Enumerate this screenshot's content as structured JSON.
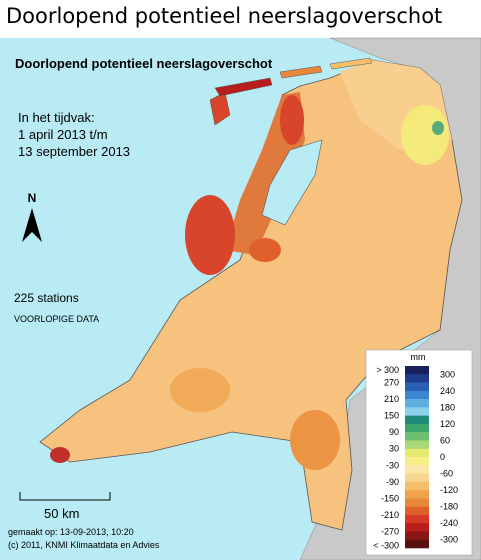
{
  "header": {
    "title": "Doorlopend potentieel neerslagoverschot"
  },
  "map": {
    "title": "Doorlopend potentieel neerslagoverschot",
    "period": [
      "In het tijdvak:",
      "1 april 2013 t/m",
      "13 september 2013"
    ],
    "north": "N",
    "stations": "225 stations",
    "status": "VOORLOPIGE DATA",
    "scale": "50 km",
    "footer": [
      "gemaakt op: 13-09-2013, 10:20",
      "(c) 2011, KNMI Klimaatdata en Advies"
    ]
  },
  "legend": {
    "unit": "mm",
    "left_labels": [
      "> 300",
      "270",
      "210",
      "150",
      "90",
      "30",
      "-30",
      "-90",
      "-150",
      "-210",
      "-270",
      "< -300"
    ],
    "right_labels": [
      "300",
      "240",
      "180",
      "120",
      "60",
      "0",
      "-60",
      "-120",
      "-180",
      "-240",
      "-300"
    ],
    "colors": [
      "#1a1f5e",
      "#1f3d8c",
      "#2a5fb8",
      "#3b86d0",
      "#5fb0e0",
      "#8fd0ec",
      "#1e8a7a",
      "#3aa66a",
      "#6cc070",
      "#a8d878",
      "#e6ea70",
      "#f6f08a",
      "#fbe6a8",
      "#f8d590",
      "#f5bf6a",
      "#efa44c",
      "#e8873a",
      "#e0602c",
      "#d63a26",
      "#b81e1e",
      "#8a1616",
      "#5a1010"
    ]
  }
}
